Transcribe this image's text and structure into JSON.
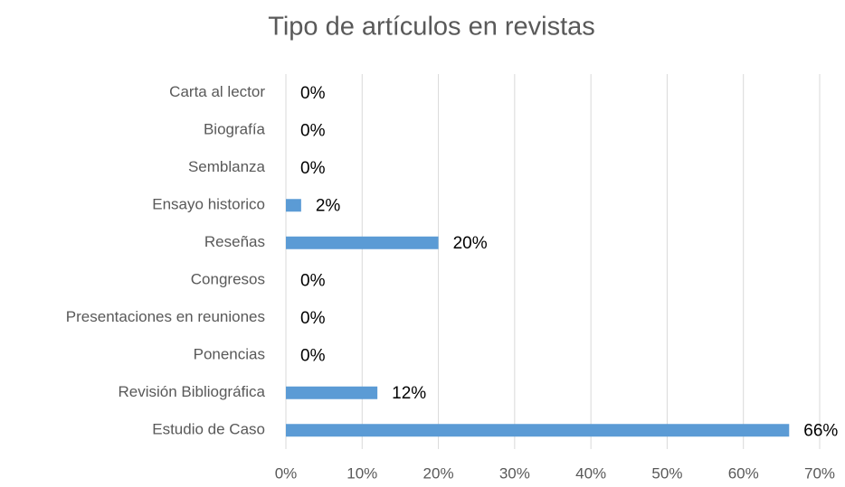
{
  "chart_data": {
    "type": "bar",
    "orientation": "horizontal",
    "title": "Tipo de artículos en revistas",
    "categories": [
      "Carta al lector",
      "Biografía",
      "Semblanza",
      "Ensayo historico",
      "Reseñas",
      "Congresos",
      "Presentaciones en reuniones",
      "Ponencias",
      "Revisión Bibliográfica",
      "Estudio de Caso"
    ],
    "values": [
      0,
      0,
      0,
      2,
      20,
      0,
      0,
      0,
      12,
      66
    ],
    "value_labels": [
      "0%",
      "0%",
      "0%",
      "2%",
      "20%",
      "0%",
      "0%",
      "0%",
      "12%",
      "66%"
    ],
    "color": "#5b9bd5",
    "xlim": [
      0,
      70
    ],
    "xticks": [
      {
        "value": 0,
        "label": "0%"
      },
      {
        "value": 10,
        "label": "10%"
      },
      {
        "value": 20,
        "label": "20%"
      },
      {
        "value": 30,
        "label": "30%"
      },
      {
        "value": 40,
        "label": "40%"
      },
      {
        "value": 50,
        "label": "50%"
      },
      {
        "value": 60,
        "label": "60%"
      },
      {
        "value": 70,
        "label": "70%"
      }
    ],
    "grid": true
  }
}
